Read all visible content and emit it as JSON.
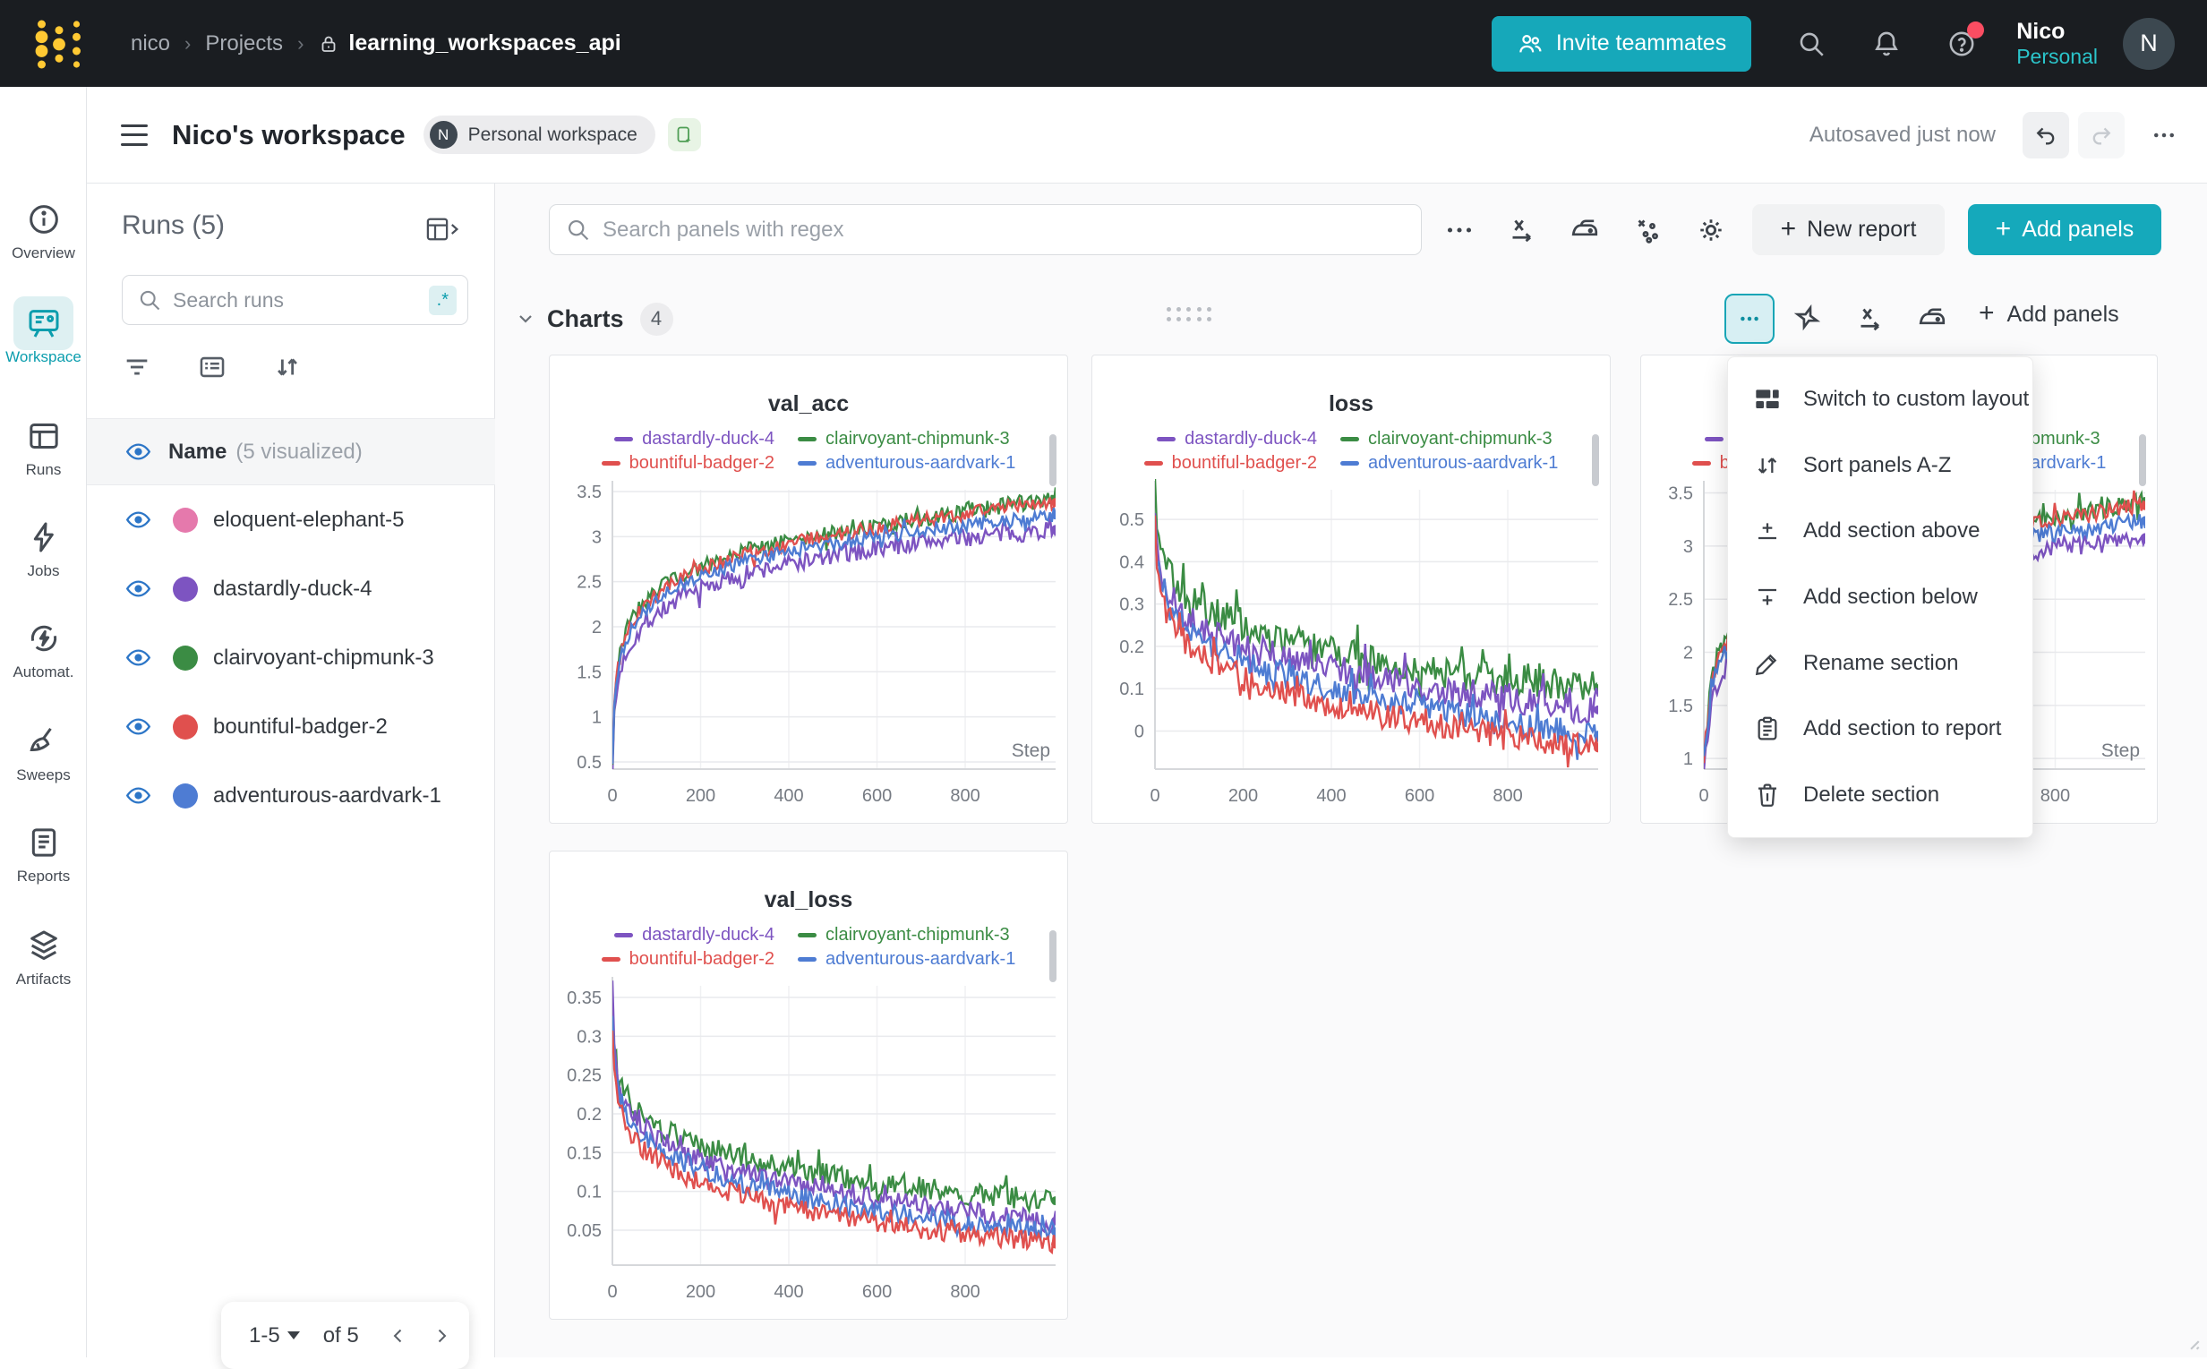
{
  "navbar": {
    "breadcrumb": {
      "user": "nico",
      "section": "Projects",
      "project": "learning_workspaces_api"
    },
    "invite_label": "Invite teammates",
    "icons": [
      "search-icon",
      "bell-icon",
      "help-icon"
    ],
    "user_name": "Nico",
    "user_scope": "Personal",
    "avatar_initial": "N"
  },
  "sidebar": {
    "items": [
      {
        "label": "Overview",
        "icon": "info-icon",
        "active": false
      },
      {
        "label": "Workspace",
        "icon": "board-icon",
        "active": true
      },
      {
        "label": "Runs",
        "icon": "table-icon",
        "active": false
      },
      {
        "label": "Jobs",
        "icon": "bolt-icon",
        "active": false
      },
      {
        "label": "Automat.",
        "icon": "automation-icon",
        "active": false
      },
      {
        "label": "Sweeps",
        "icon": "broom-icon",
        "active": false
      },
      {
        "label": "Reports",
        "icon": "document-icon",
        "active": false
      },
      {
        "label": "Artifacts",
        "icon": "layers-icon",
        "active": false
      }
    ]
  },
  "workspace_header": {
    "title": "Nico's workspace",
    "badge_initial": "N",
    "badge_label": "Personal workspace",
    "autosave": "Autosaved just now"
  },
  "runs_panel": {
    "title": "Runs (5)",
    "search_placeholder": "Search runs",
    "regex_badge": ".*",
    "name_header": "Name",
    "visualized_note": "(5 visualized)",
    "runs": [
      {
        "name": "eloquent-elephant-5",
        "color": "#e579ac"
      },
      {
        "name": "dastardly-duck-4",
        "color": "#7d54c1"
      },
      {
        "name": "clairvoyant-chipmunk-3",
        "color": "#3b8c44"
      },
      {
        "name": "bountiful-badger-2",
        "color": "#e0504e"
      },
      {
        "name": "adventurous-aardvark-1",
        "color": "#4e7cd3"
      }
    ],
    "pagination": {
      "range": "1-5",
      "of": "of 5"
    }
  },
  "panel_toolbar": {
    "search_placeholder": "Search panels with regex",
    "icons": [
      "more-icon",
      "x-axis-icon",
      "iron-icon",
      "outliers-icon",
      "gear-icon"
    ],
    "new_report_label": "New report",
    "add_panels_label": "Add panels"
  },
  "charts_section": {
    "title": "Charts",
    "count": "4",
    "icons": [
      "more-icon",
      "spark-pin-icon",
      "x-axis-icon",
      "iron-icon"
    ],
    "add_panels_label": "Add panels"
  },
  "context_menu": {
    "items": [
      {
        "icon": "layout-icon",
        "label": "Switch to custom layout"
      },
      {
        "icon": "sort-icon",
        "label": "Sort panels A-Z"
      },
      {
        "icon": "add-above-icon",
        "label": "Add section above"
      },
      {
        "icon": "add-below-icon",
        "label": "Add section below"
      },
      {
        "icon": "pencil-icon",
        "label": "Rename section"
      },
      {
        "icon": "clipboard-icon",
        "label": "Add section to report"
      },
      {
        "icon": "trash-icon",
        "label": "Delete section"
      }
    ]
  },
  "chart_data": [
    {
      "type": "line",
      "title": "val_acc",
      "xlabel": "Step",
      "legend_position": "top",
      "grid": true,
      "xlim": [
        0,
        1005
      ],
      "ylim": [
        0.42,
        3.52
      ],
      "x_ticks": [
        0,
        200,
        400,
        600,
        800
      ],
      "y_ticks": [
        0.5,
        1,
        1.5,
        2,
        2.5,
        3,
        3.5
      ],
      "anchor_x": [
        0,
        5,
        15,
        30,
        60,
        100,
        150,
        200,
        300,
        400,
        500,
        600,
        700,
        800,
        900,
        1000
      ],
      "draw_order": [
        0,
        1,
        2,
        3
      ],
      "series": [
        {
          "name": "dastardly-duck-4",
          "color": "#7d54c1",
          "noise": 0.1,
          "values": [
            0.45,
            1.05,
            1.45,
            1.7,
            1.95,
            2.15,
            2.3,
            2.42,
            2.58,
            2.7,
            2.78,
            2.86,
            2.94,
            2.99,
            3.03,
            3.08
          ]
        },
        {
          "name": "clairvoyant-chipmunk-3",
          "color": "#3b8c44",
          "noise": 0.09,
          "values": [
            0.5,
            1.25,
            1.65,
            1.95,
            2.2,
            2.4,
            2.55,
            2.66,
            2.84,
            2.95,
            3.05,
            3.12,
            3.2,
            3.28,
            3.35,
            3.42
          ]
        },
        {
          "name": "bountiful-badger-2",
          "color": "#e0504e",
          "noise": 0.08,
          "values": [
            0.5,
            1.22,
            1.62,
            1.92,
            2.17,
            2.37,
            2.52,
            2.63,
            2.8,
            2.92,
            3.02,
            3.1,
            3.18,
            3.25,
            3.32,
            3.38
          ]
        },
        {
          "name": "adventurous-aardvark-1",
          "color": "#4e7cd3",
          "noise": 0.08,
          "values": [
            0.48,
            1.15,
            1.55,
            1.85,
            2.1,
            2.3,
            2.45,
            2.56,
            2.72,
            2.83,
            2.92,
            3.0,
            3.07,
            3.12,
            3.18,
            3.24
          ]
        }
      ]
    },
    {
      "type": "line",
      "title": "loss",
      "xlabel": "",
      "legend_position": "top",
      "grid": true,
      "xlim": [
        0,
        1005
      ],
      "ylim": [
        -0.09,
        0.57
      ],
      "x_ticks": [
        0,
        200,
        400,
        600,
        800
      ],
      "y_ticks": [
        0,
        0.1,
        0.2,
        0.3,
        0.4,
        0.5
      ],
      "anchor_x": [
        0,
        5,
        15,
        30,
        60,
        100,
        150,
        200,
        300,
        400,
        500,
        600,
        700,
        800,
        900,
        1000
      ],
      "draw_order": [
        1,
        0,
        3,
        2
      ],
      "series": [
        {
          "name": "dastardly-duck-4",
          "color": "#7d54c1",
          "noise": 0.035,
          "values": [
            0.52,
            0.42,
            0.37,
            0.33,
            0.28,
            0.25,
            0.22,
            0.2,
            0.17,
            0.15,
            0.13,
            0.11,
            0.09,
            0.08,
            0.06,
            0.05
          ]
        },
        {
          "name": "clairvoyant-chipmunk-3",
          "color": "#3b8c44",
          "noise": 0.04,
          "values": [
            0.57,
            0.46,
            0.41,
            0.37,
            0.33,
            0.3,
            0.27,
            0.25,
            0.21,
            0.19,
            0.17,
            0.15,
            0.13,
            0.12,
            0.11,
            0.1
          ]
        },
        {
          "name": "bountiful-badger-2",
          "color": "#e0504e",
          "noise": 0.03,
          "values": [
            0.5,
            0.37,
            0.31,
            0.27,
            0.22,
            0.18,
            0.15,
            0.13,
            0.09,
            0.06,
            0.04,
            0.02,
            0.0,
            -0.01,
            -0.03,
            -0.04
          ]
        },
        {
          "name": "adventurous-aardvark-1",
          "color": "#4e7cd3",
          "noise": 0.03,
          "values": [
            0.51,
            0.4,
            0.35,
            0.31,
            0.26,
            0.22,
            0.19,
            0.17,
            0.13,
            0.1,
            0.08,
            0.06,
            0.04,
            0.02,
            0.0,
            -0.01
          ]
        }
      ]
    },
    {
      "type": "line",
      "title": "",
      "xlabel": "Step",
      "legend_position": "top",
      "grid": true,
      "xlim": [
        0,
        1005
      ],
      "ylim": [
        0.9,
        3.53
      ],
      "x_ticks": [
        0,
        200,
        400,
        600,
        800
      ],
      "y_ticks": [
        1,
        1.5,
        2,
        2.5,
        3,
        3.5
      ],
      "anchor_x": [
        0,
        5,
        15,
        30,
        60,
        100,
        150,
        200,
        300,
        400,
        500,
        600,
        700,
        800,
        900,
        1000
      ],
      "draw_order": [
        0,
        1,
        2,
        3
      ],
      "series": [
        {
          "name": "dastardly-duck-4",
          "color": "#7d54c1",
          "noise": 0.1,
          "values": [
            0.95,
            1.05,
            1.45,
            1.7,
            1.95,
            2.15,
            2.3,
            2.42,
            2.58,
            2.7,
            2.78,
            2.86,
            2.94,
            2.99,
            3.03,
            3.08
          ]
        },
        {
          "name": "clairvoyant-chipmunk-3",
          "color": "#3b8c44",
          "noise": 0.09,
          "values": [
            1.0,
            1.25,
            1.65,
            1.95,
            2.2,
            2.4,
            2.55,
            2.66,
            2.84,
            2.95,
            3.05,
            3.12,
            3.2,
            3.28,
            3.35,
            3.42
          ]
        },
        {
          "name": "bountiful-badger-2",
          "color": "#e0504e",
          "noise": 0.08,
          "values": [
            1.0,
            1.22,
            1.62,
            1.92,
            2.17,
            2.37,
            2.52,
            2.63,
            2.8,
            2.92,
            3.02,
            3.1,
            3.18,
            3.25,
            3.32,
            3.38
          ]
        },
        {
          "name": "adventurous-aardvark-1",
          "color": "#4e7cd3",
          "noise": 0.08,
          "values": [
            0.98,
            1.15,
            1.55,
            1.85,
            2.1,
            2.3,
            2.45,
            2.56,
            2.72,
            2.83,
            2.92,
            3.0,
            3.07,
            3.12,
            3.18,
            3.24
          ]
        }
      ]
    },
    {
      "type": "line",
      "title": "val_loss",
      "xlabel": "",
      "legend_position": "top",
      "grid": true,
      "xlim": [
        0,
        1005
      ],
      "ylim": [
        0.005,
        0.365
      ],
      "x_ticks": [
        0,
        200,
        400,
        600,
        800
      ],
      "y_ticks": [
        0.05,
        0.1,
        0.15,
        0.2,
        0.25,
        0.3,
        0.35
      ],
      "anchor_x": [
        0,
        5,
        15,
        30,
        60,
        100,
        150,
        200,
        300,
        400,
        500,
        600,
        700,
        800,
        900,
        1000
      ],
      "draw_order": [
        1,
        0,
        3,
        2
      ],
      "series": [
        {
          "name": "dastardly-duck-4",
          "color": "#7d54c1",
          "noise": 0.013,
          "values": [
            0.35,
            0.27,
            0.24,
            0.215,
            0.19,
            0.17,
            0.155,
            0.14,
            0.125,
            0.11,
            0.1,
            0.09,
            0.082,
            0.075,
            0.068,
            0.062
          ]
        },
        {
          "name": "clairvoyant-chipmunk-3",
          "color": "#3b8c44",
          "noise": 0.015,
          "values": [
            0.34,
            0.28,
            0.25,
            0.225,
            0.2,
            0.185,
            0.17,
            0.16,
            0.14,
            0.13,
            0.12,
            0.11,
            0.105,
            0.098,
            0.092,
            0.088
          ]
        },
        {
          "name": "bountiful-badger-2",
          "color": "#e0504e",
          "noise": 0.013,
          "values": [
            0.3,
            0.24,
            0.21,
            0.185,
            0.16,
            0.14,
            0.125,
            0.11,
            0.095,
            0.08,
            0.07,
            0.06,
            0.052,
            0.045,
            0.04,
            0.032
          ]
        },
        {
          "name": "adventurous-aardvark-1",
          "color": "#4e7cd3",
          "noise": 0.013,
          "values": [
            0.33,
            0.26,
            0.23,
            0.2,
            0.175,
            0.155,
            0.14,
            0.13,
            0.11,
            0.095,
            0.085,
            0.075,
            0.068,
            0.06,
            0.053,
            0.048
          ]
        }
      ]
    }
  ],
  "colors": {
    "accent_teal": "#15a9bb",
    "active_teal": "#0b9dad",
    "navbar_bg": "#1a1d21",
    "logo_gold": "#ffc933",
    "alert_red": "#fa4d62"
  }
}
